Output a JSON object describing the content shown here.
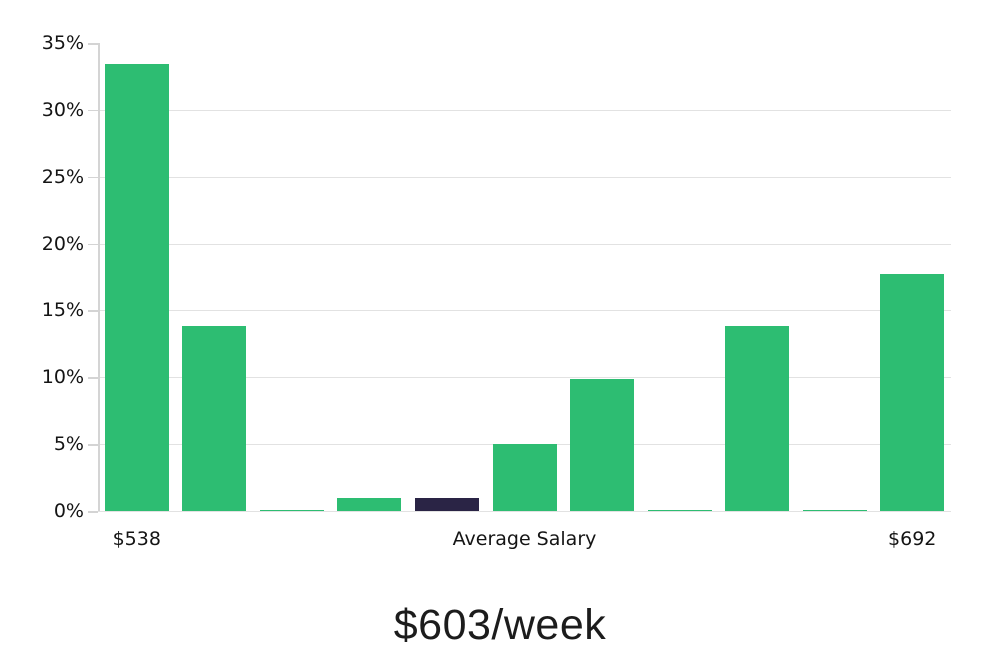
{
  "title": "$603/week",
  "colors": {
    "bar": "#2dbd72",
    "highlight_bar": "#2a2445",
    "gridline": "#e2e2e2",
    "axis_line": "#d4d4d4",
    "text": "#141414"
  },
  "chart_data": {
    "type": "bar",
    "title": "$603/week",
    "xlabel": "",
    "ylabel": "",
    "num_bars": 11,
    "values": [
      33.4,
      13.8,
      0.1,
      1.0,
      1.0,
      5.0,
      9.9,
      0.1,
      13.8,
      0.1,
      17.7
    ],
    "highlight_index": 4,
    "bar_color": "#2dbd72",
    "highlight_color": "#2a2445",
    "ylim": [
      0,
      35
    ],
    "y_ticks": [
      0,
      5,
      10,
      15,
      20,
      25,
      30,
      35
    ],
    "y_tick_suffix": "%",
    "x_tick_labels": [
      {
        "index": 0,
        "label": "$538"
      },
      {
        "index": 5,
        "label": "Average Salary"
      },
      {
        "index": 10,
        "label": "$692"
      }
    ],
    "grid": true,
    "legend": false
  }
}
